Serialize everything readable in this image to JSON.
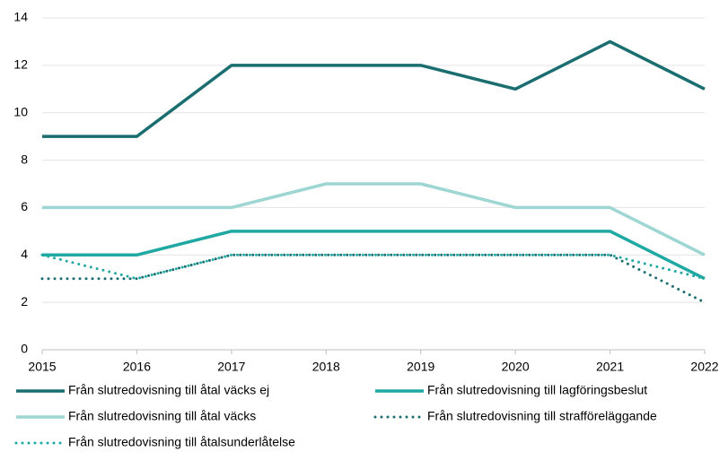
{
  "chart_data": {
    "type": "line",
    "x": [
      2015,
      2016,
      2017,
      2018,
      2019,
      2020,
      2021,
      2022
    ],
    "xlim": [
      2015,
      2022
    ],
    "xticks": [
      2015,
      2016,
      2017,
      2018,
      2019,
      2020,
      2021,
      2022
    ],
    "ylim": [
      0,
      14
    ],
    "yticks": [
      0,
      2,
      4,
      6,
      8,
      10,
      12,
      14
    ],
    "grid": true,
    "legend": "bottom",
    "series": [
      {
        "name": "Från slutredovisning till åtal väcks ej",
        "color": "#1a6e70",
        "style": "solid",
        "values": [
          9,
          9,
          12,
          12,
          12,
          11,
          13,
          11
        ]
      },
      {
        "name": "Från slutredovisning till lagföringsbeslut",
        "color": "#1fa9a2",
        "style": "solid",
        "values": [
          4,
          4,
          5,
          5,
          5,
          5,
          5,
          3
        ]
      },
      {
        "name": "Från slutredovisning till åtal väcks",
        "color": "#9dd6d3",
        "style": "solid",
        "values": [
          6,
          6,
          6,
          7,
          7,
          6,
          6,
          4
        ]
      },
      {
        "name": "Från slutredovisning till strafföreläggande",
        "color": "#1a6e70",
        "style": "dotted",
        "values": [
          3,
          3,
          4,
          4,
          4,
          4,
          4,
          2
        ]
      },
      {
        "name": "Från slutredovisning till åtalsunderlåtelse",
        "color": "#1fa9a2",
        "style": "dotted",
        "values": [
          4,
          3,
          4,
          4,
          4,
          4,
          4,
          3
        ]
      }
    ]
  }
}
